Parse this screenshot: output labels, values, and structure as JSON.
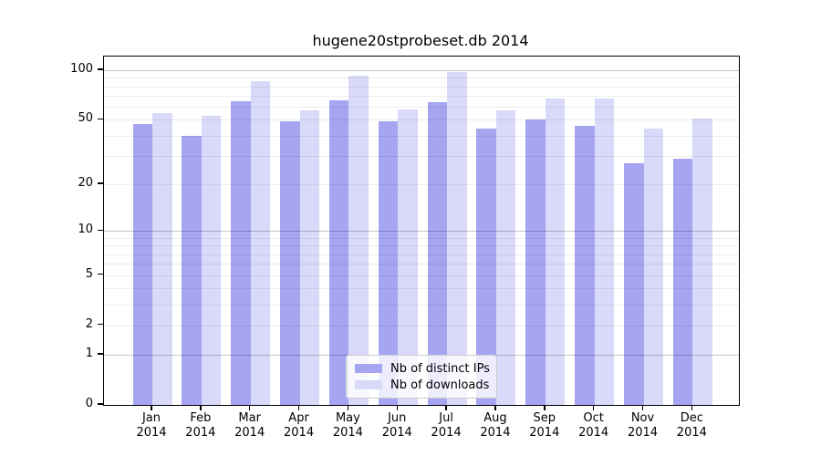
{
  "chart_data": {
    "type": "bar",
    "title": "hugene20stprobeset.db 2014",
    "xlabel": "",
    "ylabel": "",
    "yscale": "log1p",
    "ylim": [
      0,
      121
    ],
    "grid": true,
    "legend_position": "lower-center-inside",
    "year_label": "2014",
    "months": [
      "Jan",
      "Feb",
      "Mar",
      "Apr",
      "May",
      "Jun",
      "Jul",
      "Aug",
      "Sep",
      "Oct",
      "Nov",
      "Dec"
    ],
    "categories": [
      "Jan 2014",
      "Feb 2014",
      "Mar 2014",
      "Apr 2014",
      "May 2014",
      "Jun 2014",
      "Jul 2014",
      "Aug 2014",
      "Sep 2014",
      "Oct 2014",
      "Nov 2014",
      "Dec 2014"
    ],
    "series": [
      {
        "name": "Nb of distinct IPs",
        "color": "#a5a5f2",
        "values": [
          47,
          40,
          65,
          49,
          66,
          49,
          64,
          44,
          50,
          46,
          27,
          29
        ]
      },
      {
        "name": "Nb of downloads",
        "color": "#d9d9f9",
        "values": [
          55,
          53,
          86,
          57,
          93,
          58,
          97,
          57,
          67,
          67,
          44,
          51
        ]
      }
    ],
    "y_ticks": [
      {
        "label": "100",
        "value": 100
      },
      {
        "label": "50",
        "value": 50
      },
      {
        "label": "20",
        "value": 20
      },
      {
        "label": "10",
        "value": 10
      },
      {
        "label": "5",
        "value": 5
      },
      {
        "label": "2",
        "value": 2
      },
      {
        "label": "1",
        "value": 1
      },
      {
        "label": "0",
        "value": 0
      }
    ],
    "major_gridline_values": [
      1,
      10,
      100
    ],
    "minor_gridline_values": [
      2,
      3,
      4,
      5,
      6,
      7,
      8,
      9,
      20,
      30,
      40,
      50,
      60,
      70,
      80,
      90
    ]
  }
}
